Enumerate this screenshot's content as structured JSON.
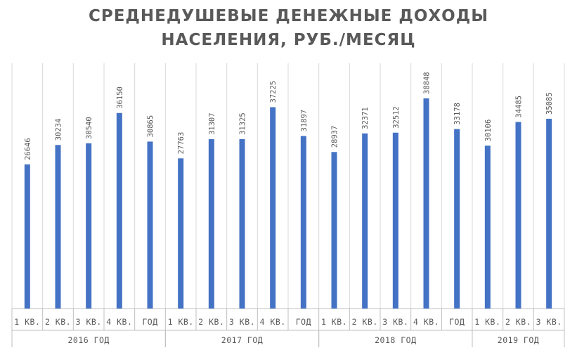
{
  "chart_data": {
    "type": "bar",
    "title_lines": [
      "СРЕДНЕДУШЕВЫЕ ДЕНЕЖНЫЕ ДОХОДЫ",
      "НАСЕЛЕНИЯ, РУБ./МЕСЯЦ"
    ],
    "xlabel": "",
    "ylabel": "",
    "ylim": [
      0,
      38848
    ],
    "grid": "vertical",
    "legend": "none",
    "groups": [
      {
        "label": "2016 ГОД",
        "categories": [
          "1 КВ.",
          "2 КВ.",
          "3 КВ.",
          "4 КВ.",
          "ГОД"
        ],
        "values": [
          26646,
          30234,
          30540,
          36150,
          30865
        ]
      },
      {
        "label": "2017 ГОД",
        "categories": [
          "1 КВ.",
          "2 КВ.",
          "3 КВ.",
          "4 КВ.",
          "ГОД"
        ],
        "values": [
          27763,
          31307,
          31325,
          37225,
          31897
        ]
      },
      {
        "label": "2018 ГОД",
        "categories": [
          "1 КВ.",
          "2 КВ.",
          "3 КВ.",
          "4 КВ.",
          "ГОД"
        ],
        "values": [
          28937,
          32371,
          32512,
          38848,
          33178
        ]
      },
      {
        "label": "2019 ГОД",
        "categories": [
          "1 КВ.",
          "2 КВ.",
          "3 КВ."
        ],
        "values": [
          30106,
          34485,
          35085
        ]
      }
    ],
    "series": [
      {
        "values": [
          26646,
          30234,
          30540,
          36150,
          30865,
          27763,
          31307,
          31325,
          37225,
          31897,
          28937,
          32371,
          32512,
          38848,
          33178,
          30106,
          34485,
          35085
        ]
      }
    ],
    "colors": {
      "bar": "#4472c4",
      "grid": "#d9d9d9",
      "axis": "#bfbfbf",
      "text": "#595959"
    }
  }
}
